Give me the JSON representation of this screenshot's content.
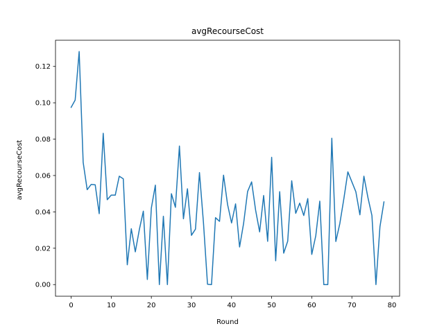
{
  "chart_data": {
    "type": "line",
    "title": "avgRecourseCost",
    "xlabel": "Round",
    "ylabel": "avgRecourseCost",
    "xlim": [
      -3.9,
      81.9
    ],
    "ylim": [
      -0.0064,
      0.1344
    ],
    "xticks": [
      0,
      10,
      20,
      30,
      40,
      50,
      60,
      70,
      80
    ],
    "yticks": [
      0.0,
      0.02,
      0.04,
      0.06,
      0.08,
      0.1,
      0.12
    ],
    "ytick_labels": [
      "0.00",
      "0.02",
      "0.04",
      "0.06",
      "0.08",
      "0.10",
      "0.12"
    ],
    "grid": false,
    "series": [
      {
        "color": "#1f77b4",
        "x": [
          0,
          1,
          2,
          3,
          4,
          5,
          6,
          7,
          8,
          9,
          10,
          11,
          12,
          13,
          14,
          15,
          16,
          17,
          18,
          19,
          20,
          21,
          22,
          23,
          24,
          25,
          26,
          27,
          28,
          29,
          30,
          31,
          32,
          33,
          34,
          35,
          36,
          37,
          38,
          39,
          40,
          41,
          42,
          43,
          44,
          45,
          46,
          47,
          48,
          49,
          50,
          51,
          52,
          53,
          54,
          55,
          56,
          57,
          58,
          59,
          60,
          61,
          62,
          63,
          64,
          65,
          66,
          67,
          68,
          69,
          70,
          71,
          72,
          73,
          74,
          75,
          76,
          77,
          78
        ],
        "values": [
          0.0975,
          0.1015,
          0.1282,
          0.0672,
          0.0522,
          0.0551,
          0.0549,
          0.039,
          0.0832,
          0.0467,
          0.0492,
          0.0492,
          0.0596,
          0.0582,
          0.0109,
          0.0307,
          0.018,
          0.0302,
          0.0404,
          0.0028,
          0.0421,
          0.0547,
          0.0,
          0.0376,
          0.0,
          0.05,
          0.0425,
          0.0762,
          0.0362,
          0.0527,
          0.0271,
          0.0305,
          0.0616,
          0.0339,
          0.0002,
          0.0,
          0.0368,
          0.0348,
          0.0602,
          0.0441,
          0.0339,
          0.0444,
          0.0207,
          0.0336,
          0.0512,
          0.0565,
          0.0409,
          0.029,
          0.049,
          0.0238,
          0.07,
          0.0131,
          0.0511,
          0.0173,
          0.0239,
          0.0571,
          0.0392,
          0.0448,
          0.038,
          0.0473,
          0.0166,
          0.0269,
          0.0459,
          0.0,
          0.0,
          0.0805,
          0.0237,
          0.0336,
          0.0472,
          0.062,
          0.0565,
          0.051,
          0.0384,
          0.0596,
          0.0479,
          0.038,
          0.0,
          0.0318,
          0.0455
        ]
      }
    ]
  }
}
